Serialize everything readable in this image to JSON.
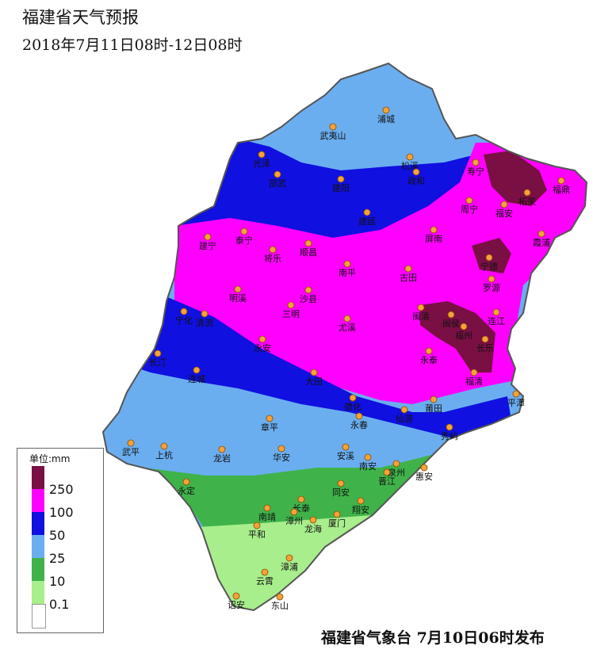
{
  "header": {
    "title": "福建省天气预报",
    "subtitle": "2018年7月11日08时-12日08时"
  },
  "footer": {
    "issuer": "福建省气象台  7月10日06时发布"
  },
  "legend": {
    "title": "单位:mm",
    "items": [
      {
        "label": "250",
        "color": "#7a0f43"
      },
      {
        "label": "100",
        "color": "#ff00ff"
      },
      {
        "label": "50",
        "color": "#1010e0"
      },
      {
        "label": "25",
        "color": "#6aaef0"
      },
      {
        "label": "10",
        "color": "#3fb34a"
      },
      {
        "label": "0.1",
        "color": "#a8ee8c"
      },
      {
        "label": "",
        "color": "#ffffff"
      }
    ]
  },
  "cities": [
    "浦城",
    "武夷山",
    "松溪",
    "政和",
    "光泽",
    "邵武",
    "建阳",
    "寿宁",
    "柘荣",
    "福鼎",
    "周宁",
    "福安",
    "建瓯",
    "屏南",
    "霞浦",
    "建宁",
    "泰宁",
    "将乐",
    "顺昌",
    "宁德",
    "南平",
    "古田",
    "罗源",
    "明溪",
    "沙县",
    "三明",
    "闽清",
    "闽侯",
    "连江",
    "宁化",
    "清流",
    "尤溪",
    "福州",
    "永安",
    "长乐",
    "永泰",
    "长汀",
    "连城",
    "大田",
    "福清",
    "平潭",
    "德化",
    "莆田",
    "仙游",
    "永春",
    "章平",
    "秀屿",
    "武平",
    "上杭",
    "龙岩",
    "华安",
    "安溪",
    "南安",
    "泉州",
    "惠安",
    "晋江",
    "永定",
    "同安",
    "长泰",
    "翔安",
    "南靖",
    "漳州",
    "龙海",
    "厦门",
    "平和",
    "漳浦",
    "云霄",
    "诏安",
    "东山"
  ]
}
